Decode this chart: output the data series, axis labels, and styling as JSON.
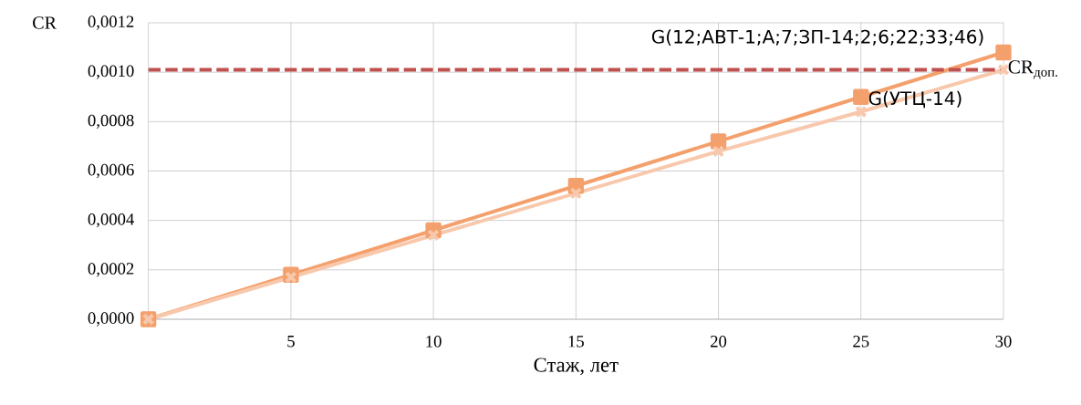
{
  "chart_data": {
    "type": "line",
    "xlabel": "Стаж, лет",
    "ylabel": "CR",
    "x": [
      0,
      5,
      10,
      15,
      20,
      25,
      30
    ],
    "series": [
      {
        "name": "G(12;АВТ-1;А;7;ЗП-14;2;6;22;33;46)",
        "color": "#f4a06c",
        "marker": "square",
        "values": [
          0,
          0.00018,
          0.00036,
          0.00054,
          0.00072,
          0.0009,
          0.00108
        ]
      },
      {
        "name": "G(УТЦ-14)",
        "color": "#f8c8ac",
        "marker": "cross",
        "values": [
          0,
          0.00017,
          0.00034,
          0.00051,
          0.00068,
          0.00084,
          0.00101
        ]
      }
    ],
    "xlim": [
      0,
      30
    ],
    "ylim": [
      0,
      0.0012
    ],
    "xticks": [
      5,
      10,
      15,
      20,
      25,
      30
    ],
    "yticks": [
      {
        "value": 0,
        "label": "0,0000"
      },
      {
        "value": 0.0002,
        "label": "0,0002"
      },
      {
        "value": 0.0004,
        "label": "0,0004"
      },
      {
        "value": 0.0006,
        "label": "0,0006"
      },
      {
        "value": 0.0008,
        "label": "0,0008"
      },
      {
        "value": 0.001,
        "label": "0,0010"
      },
      {
        "value": 0.0012,
        "label": "0,0012"
      }
    ],
    "ref_lines": [
      {
        "axis": "y",
        "value": 0.00101,
        "label": "CR$_{доп.}$",
        "color": "#c0504d",
        "line_style": "dashed"
      }
    ],
    "grid": true,
    "line_style": "solid"
  }
}
